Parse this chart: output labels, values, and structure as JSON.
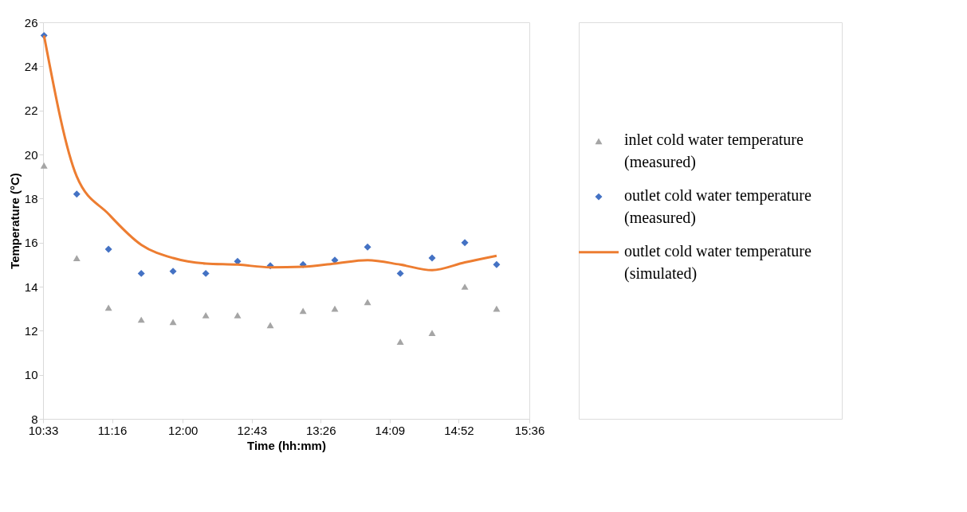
{
  "chart_data": {
    "type": "scatter",
    "xlabel": "Time (hh:mm)",
    "ylabel": "Temperature (°C)",
    "x": [
      10.56,
      10.9,
      11.23,
      11.57,
      11.9,
      12.24,
      12.57,
      12.91,
      13.25,
      13.58,
      13.92,
      14.26,
      14.59,
      14.93,
      15.26
    ],
    "series": [
      {
        "name": "inlet cold water temperature (measured)",
        "marker": "triangle",
        "color": "#a5a5a5",
        "values": [
          19.5,
          15.3,
          13.05,
          12.5,
          12.4,
          12.7,
          12.7,
          12.25,
          12.9,
          13.0,
          13.3,
          11.5,
          11.9,
          14.0,
          13.0
        ]
      },
      {
        "name": "outlet cold water temperature (measured)",
        "marker": "diamond",
        "color": "#4472c4",
        "values": [
          25.4,
          18.2,
          15.7,
          14.6,
          14.7,
          14.6,
          15.15,
          14.95,
          15.0,
          15.2,
          15.8,
          14.6,
          15.3,
          16.0,
          15.0
        ]
      },
      {
        "name": "outlet cold water temperature (simulated)",
        "type": "line",
        "marker": "none",
        "line_style": "solid",
        "color": "#ed7d31",
        "values": [
          25.4,
          19.0,
          17.3,
          15.9,
          15.3,
          15.05,
          15.0,
          14.88,
          14.9,
          15.05,
          15.2,
          15.0,
          14.75,
          15.1,
          15.4
        ]
      }
    ],
    "xlim": [
      10.55,
      15.6
    ],
    "xticks": [
      {
        "value": 10.55,
        "label": "10:33"
      },
      {
        "value": 11.2667,
        "label": "11:16"
      },
      {
        "value": 12.0,
        "label": "12:00"
      },
      {
        "value": 12.7167,
        "label": "12:43"
      },
      {
        "value": 13.4333,
        "label": "13:26"
      },
      {
        "value": 14.15,
        "label": "14:09"
      },
      {
        "value": 14.8667,
        "label": "14:52"
      },
      {
        "value": 15.6,
        "label": "15:36"
      }
    ],
    "ylim": [
      8,
      26
    ],
    "yticks": [
      8,
      10,
      12,
      14,
      16,
      18,
      20,
      22,
      24,
      26
    ],
    "grid": false,
    "legend": "right"
  }
}
